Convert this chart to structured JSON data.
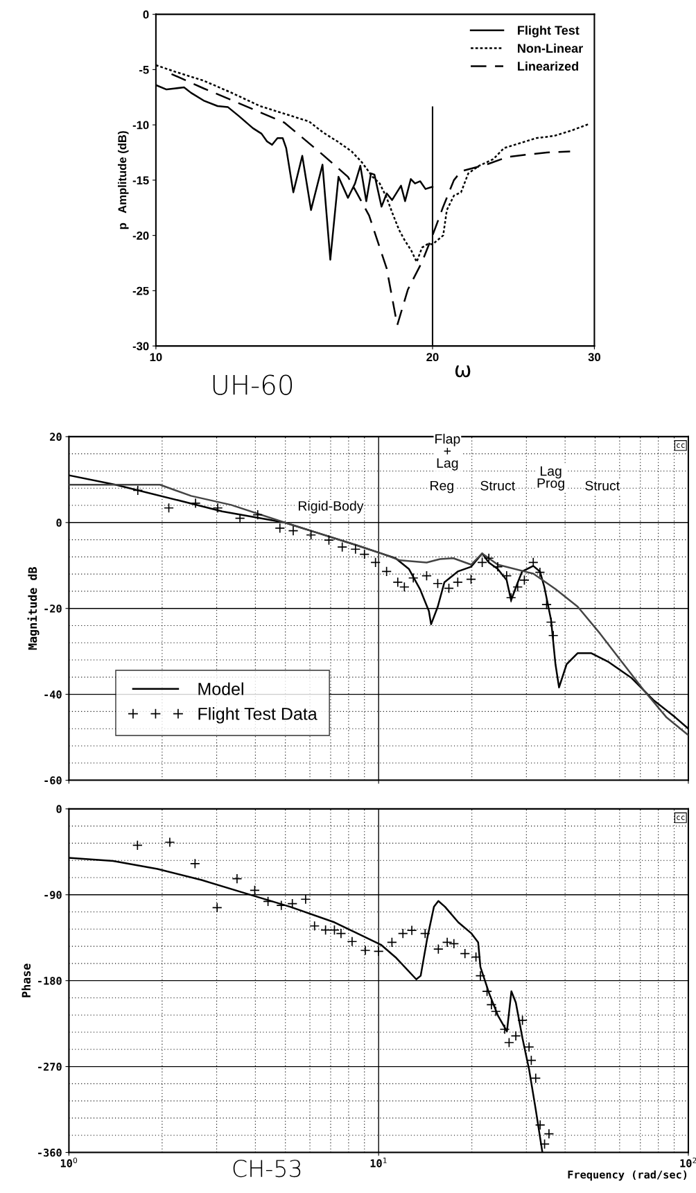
{
  "chart_data": [
    {
      "type": "line",
      "xlabel": "ω",
      "ylabel": "p   Amplitude (dB)",
      "log": "x",
      "xlim": [
        10,
        30
      ],
      "xticks": [
        10,
        20,
        30
      ],
      "ylim": [
        -30,
        0
      ],
      "yticks": [
        0,
        -5,
        -10,
        -15,
        -20,
        -25,
        -30
      ],
      "legend": "top right",
      "ref_lines": [
        {
          "axis": "x",
          "value": 20,
          "color": "#000000"
        }
      ],
      "annotations": [
        "UH-60"
      ],
      "series": [
        {
          "name": "Flight Test",
          "color": "#000000",
          "line_style": "solid",
          "x": [
            10,
            10.27,
            10.5,
            10.73,
            10.92,
            11.27,
            11.67,
            11.98,
            12.31,
            12.75,
            13.03,
            13.21,
            13.38,
            13.56,
            13.74,
            13.86,
            14.11,
            14.43,
            14.75,
            15.18,
            15.48,
            15.8,
            16.18,
            16.47,
            16.69,
            16.94,
            17.14,
            17.29,
            17.6,
            17.83,
            18.07,
            18.48,
            18.67,
            18.94,
            19.14,
            19.39,
            19.65,
            20
          ],
          "values": [
            -6.4,
            -6.8,
            -6.7,
            -6.6,
            -7.1,
            -7.8,
            -8.3,
            -8.4,
            -9.2,
            -10.3,
            -10.8,
            -11.5,
            -11.8,
            -11.2,
            -11.2,
            -12.1,
            -16.1,
            -12.8,
            -17.7,
            -13.6,
            -22.2,
            -14.7,
            -16.6,
            -15.3,
            -13.7,
            -16.9,
            -14.4,
            -14.5,
            -17.4,
            -16.2,
            -16.8,
            -15.5,
            -16.9,
            -14.9,
            -15.3,
            -15.1,
            -15.8,
            -15.6
          ]
        },
        {
          "name": "Non-Linear",
          "color": "#000000",
          "line_style": "dotted",
          "x": [
            10,
            10.5,
            11.27,
            12.09,
            12.98,
            13.93,
            14.68,
            15.21,
            15.76,
            16.33,
            16.76,
            17.21,
            17.52,
            17.83,
            18.07,
            18.39,
            18.64,
            18.97,
            19.22,
            19.48,
            19.74,
            20,
            20.27,
            20.54,
            20.73,
            21.1,
            21.48,
            21.87,
            22.47,
            23.29,
            23.92,
            24.57,
            25.02,
            25.93,
            27.11,
            28.35,
            29.64
          ],
          "values": [
            -4.6,
            -5.2,
            -6.0,
            -7.1,
            -8.3,
            -9.1,
            -9.7,
            -10.7,
            -11.5,
            -12.4,
            -13.4,
            -14.7,
            -15.3,
            -16.6,
            -17.9,
            -19.5,
            -20.4,
            -21.4,
            -22.4,
            -21.1,
            -20.8,
            -20.8,
            -20.4,
            -20.0,
            -17.7,
            -16.4,
            -16.1,
            -14.4,
            -13.7,
            -13.1,
            -12.1,
            -11.8,
            -11.6,
            -11.2,
            -11.0,
            -10.5,
            -9.9
          ]
        },
        {
          "name": "Linearized",
          "color": "#000000",
          "line_style": "dashed",
          "x": [
            10.4,
            11.27,
            12.2,
            13.8,
            15.14,
            16.18,
            17.06,
            17.83,
            18.23,
            18.31,
            18.8,
            19.48,
            20,
            20.54,
            21.1,
            21.48,
            22.87,
            24.14,
            25.25,
            26.63,
            28.23
          ],
          "values": [
            -5.4,
            -6.7,
            -7.9,
            -9.8,
            -12.6,
            -14.7,
            -18.2,
            -23.0,
            -27.3,
            -28.1,
            -24.9,
            -22.4,
            -20.0,
            -17.4,
            -15.0,
            -14.2,
            -13.6,
            -12.9,
            -12.7,
            -12.5,
            -12.4
          ]
        }
      ]
    },
    {
      "type": "line",
      "ylabel": "Magnitude dB",
      "log": "x",
      "xlim": [
        1,
        100
      ],
      "xticks": [
        1,
        10,
        100
      ],
      "ylim": [
        -60,
        20
      ],
      "yticks": [
        20,
        0,
        -20,
        -40,
        -60
      ],
      "tick_labels": "y",
      "grid": true,
      "legend": "bottom left",
      "annotations": [
        "Rigid-Body",
        "Flap\n+\nLag",
        "Reg",
        "Struct",
        "Lag\nProg",
        "Struct",
        "cc"
      ],
      "series": [
        {
          "name": "Model",
          "color": "#000000",
          "line_style": "solid",
          "x": [
            1,
            1.414,
            2.246,
            3.126,
            4.97,
            6.47,
            8.42,
            10.2,
            11.34,
            12.52,
            13.6,
            14.53,
            14.77,
            15.52,
            16.31,
            18.01,
            19.88,
            21.6,
            22.69,
            24.24,
            25.9,
            26.77,
            28.12,
            29.06,
            31.57,
            33.18,
            34.28,
            36.04,
            37.24,
            38.24,
            40.45,
            43.94,
            48.51,
            55.37,
            65.31,
            77.04,
            90.87,
            100
          ],
          "values": [
            11.0,
            8.8,
            5.2,
            2.6,
            0,
            -2.6,
            -5.2,
            -7.2,
            -8.3,
            -10.8,
            -15.5,
            -20.6,
            -23.7,
            -19.6,
            -13.9,
            -11.4,
            -10.3,
            -7.2,
            -9.3,
            -10.8,
            -13.4,
            -18.1,
            -14.0,
            -11.4,
            -10.1,
            -11.4,
            -15.0,
            -22.7,
            -33.0,
            -38.4,
            -33.0,
            -30.4,
            -30.4,
            -32.5,
            -36.1,
            -41.3,
            -45.4,
            -48.0
          ]
        },
        {
          "color": "#444444",
          "line_style": "solid",
          "x": [
            1,
            1.968,
            2.481,
            3.34,
            4.97,
            6.47,
            8.42,
            10.2,
            11.72,
            14.29,
            15.78,
            17.42,
            19.88,
            21.6,
            24.24,
            31.57,
            37.24,
            43.94,
            51.8,
            61.1,
            72.1,
            85.1,
            100
          ],
          "values": [
            8.8,
            8.8,
            6.2,
            4.1,
            0,
            -2.6,
            -5.2,
            -7.2,
            -8.8,
            -9.3,
            -8.5,
            -8.3,
            -9.8,
            -7.2,
            -9.8,
            -11.9,
            -15.5,
            -19.6,
            -25.8,
            -32.5,
            -39.2,
            -45.4,
            -49.5
          ]
        },
        {
          "name": "Flight Test Data",
          "type": "scatter",
          "marker": "cross",
          "color": "#000000",
          "x": [
            1.669,
            2.102,
            2.564,
            3.024,
            3.567,
            4.07,
            4.8,
            5.3,
            6.05,
            6.91,
            7.63,
            8.42,
            9.0,
            9.77,
            10.61,
            11.53,
            12.11,
            12.94,
            14.29,
            15.52,
            16.86,
            18.01,
            19.88,
            21.6,
            22.69,
            24.24,
            25.9,
            26.77,
            28.12,
            29.55,
            31.57,
            33.18,
            34.86,
            36.04,
            36.64
          ],
          "values": [
            7.5,
            3.4,
            4.5,
            3.4,
            1.0,
            1.8,
            -1.3,
            -1.9,
            -2.9,
            -4.1,
            -5.7,
            -6.2,
            -7.4,
            -9.3,
            -11.4,
            -13.9,
            -15.0,
            -12.9,
            -12.4,
            -14.2,
            -15.3,
            -13.9,
            -13.2,
            -9.3,
            -8.3,
            -10.3,
            -12.4,
            -17.5,
            -15.0,
            -13.4,
            -9.3,
            -11.6,
            -19.1,
            -23.2,
            -26.3
          ]
        }
      ]
    },
    {
      "type": "line",
      "ylabel": "Phase",
      "xlabel": "Frequency (rad/sec)",
      "log": "x",
      "xlim": [
        1,
        100
      ],
      "xticks": [
        {
          "value": 1,
          "label": "10$^{0}$"
        },
        {
          "value": 10,
          "label": "10$^{1}$"
        },
        {
          "value": 100,
          "label": "10$^{2}$"
        }
      ],
      "ylim": [
        -360,
        0
      ],
      "yticks": [
        0,
        -90,
        -180,
        -270,
        -360
      ],
      "grid": true,
      "annotations": [
        "cc",
        "CH-53"
      ],
      "series": [
        {
          "color": "#000000",
          "line_style": "solid",
          "x": [
            1,
            1.389,
            1.931,
            2.683,
            3.728,
            5.18,
            7.2,
            10.17,
            11.41,
            13.23,
            13.67,
            14.36,
            15.09,
            15.59,
            16.38,
            18.08,
            19.95,
            20.96,
            21.31,
            22.76,
            24.3,
            25.96,
            26.83,
            27.73,
            29.13,
            30.6,
            32.15,
            33.79
          ],
          "values": [
            -51.3,
            -54.6,
            -63.0,
            -74.6,
            -88.6,
            -102.6,
            -118.9,
            -142.3,
            -156.3,
            -178.6,
            -174.9,
            -135.3,
            -102.6,
            -96.5,
            -102.6,
            -118.9,
            -130.6,
            -139.9,
            -165.6,
            -193.6,
            -216.9,
            -233.2,
            -191.2,
            -202.9,
            -240.2,
            -272.9,
            -314.9,
            -360
          ]
        },
        {
          "type": "scatter",
          "marker": "cross",
          "color": "#000000",
          "x": [
            1.665,
            2.117,
            2.554,
            3.01,
            3.49,
            3.981,
            4.394,
            4.85,
            5.265,
            5.812,
            6.21,
            6.74,
            7.2,
            7.56,
            8.21,
            9.06,
            10.0,
            11.04,
            11.98,
            12.8,
            14.13,
            15.59,
            16.65,
            17.5,
            19.0,
            20.62,
            21.31,
            22.39,
            23.13,
            23.9,
            25.53,
            26.38,
            27.73,
            29.13,
            30.6,
            31.11,
            32.15,
            33.23,
            35.48,
            34.34
          ],
          "values": [
            -38.2,
            -35.0,
            -57.4,
            -103.5,
            -73.2,
            -85.4,
            -97.0,
            -101.2,
            -99.3,
            -94.7,
            -122.7,
            -126.9,
            -126.9,
            -130.6,
            -139.0,
            -148.3,
            -149.3,
            -139.9,
            -130.6,
            -127.3,
            -130.6,
            -146.9,
            -139.9,
            -141.3,
            -151.6,
            -155.3,
            -174.9,
            -191.2,
            -205.2,
            -212.2,
            -230.9,
            -244.9,
            -237.9,
            -221.5,
            -249.5,
            -263.5,
            -282.2,
            -331.2,
            -340.5,
            -351.2
          ]
        }
      ]
    }
  ]
}
